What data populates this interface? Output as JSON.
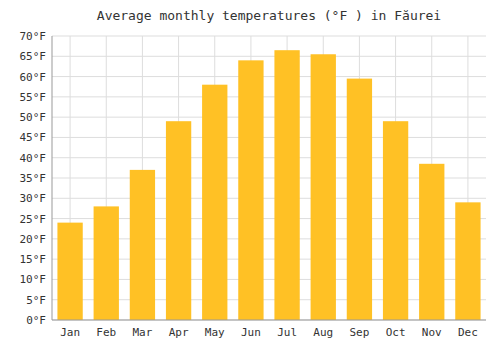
{
  "chart_data": {
    "type": "bar",
    "title": "Average monthly temperatures (°F ) in Făurei",
    "categories": [
      "Jan",
      "Feb",
      "Mar",
      "Apr",
      "May",
      "Jun",
      "Jul",
      "Aug",
      "Sep",
      "Oct",
      "Nov",
      "Dec"
    ],
    "values": [
      24,
      28,
      37,
      49,
      58,
      64,
      66.5,
      65.5,
      59.5,
      49,
      38.5,
      29
    ],
    "color": "#FFC125",
    "ylim": [
      0,
      70
    ],
    "yticks": [
      {
        "value": 0,
        "label": "0°F"
      },
      {
        "value": 5,
        "label": "5°F"
      },
      {
        "value": 10,
        "label": "10°F"
      },
      {
        "value": 15,
        "label": "15°F"
      },
      {
        "value": 20,
        "label": "20°F"
      },
      {
        "value": 25,
        "label": "25°F"
      },
      {
        "value": 30,
        "label": "30°F"
      },
      {
        "value": 35,
        "label": "35°F"
      },
      {
        "value": 40,
        "label": "40°F"
      },
      {
        "value": 45,
        "label": "45°F"
      },
      {
        "value": 50,
        "label": "50°F"
      },
      {
        "value": 55,
        "label": "55°F"
      },
      {
        "value": 60,
        "label": "60°F"
      },
      {
        "value": 65,
        "label": "65°F"
      },
      {
        "value": 70,
        "label": "70°F"
      }
    ],
    "grid": true
  }
}
